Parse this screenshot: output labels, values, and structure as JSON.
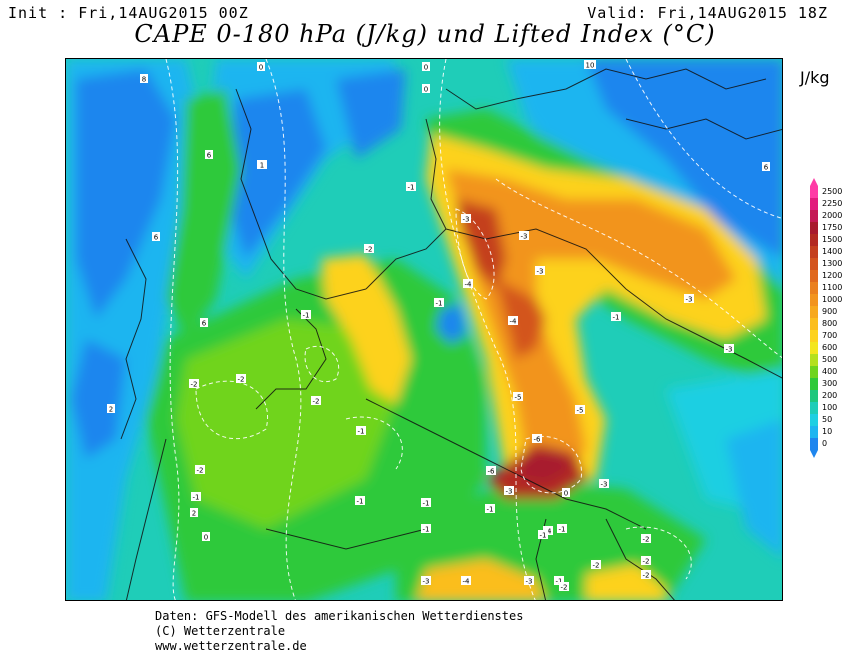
{
  "header": {
    "init": "Init : Fri,14AUG2015 00Z",
    "valid": "Valid: Fri,14AUG2015 18Z",
    "title": "CAPE 0-180 hPa (J/kg) und Lifted Index (°C)",
    "unit": "J/kg"
  },
  "legend": {
    "levels": [
      {
        "label": "2500",
        "color": "#ff3ba6"
      },
      {
        "label": "2250",
        "color": "#e21c7d"
      },
      {
        "label": "2000",
        "color": "#c41a55"
      },
      {
        "label": "1750",
        "color": "#a81a2e"
      },
      {
        "label": "1500",
        "color": "#b32a22"
      },
      {
        "label": "1400",
        "color": "#c4401f"
      },
      {
        "label": "1300",
        "color": "#d3541f"
      },
      {
        "label": "1200",
        "color": "#e0691e"
      },
      {
        "label": "1100",
        "color": "#ea801f"
      },
      {
        "label": "1000",
        "color": "#f2941f"
      },
      {
        "label": "900",
        "color": "#f7a91f"
      },
      {
        "label": "800",
        "color": "#fbbe1f"
      },
      {
        "label": "700",
        "color": "#fdd21f"
      },
      {
        "label": "600",
        "color": "#f3e61f"
      },
      {
        "label": "500",
        "color": "#b4e01f"
      },
      {
        "label": "400",
        "color": "#6fd41f"
      },
      {
        "label": "300",
        "color": "#2fc93a"
      },
      {
        "label": "200",
        "color": "#1fc77d"
      },
      {
        "label": "100",
        "color": "#1fcdb8"
      },
      {
        "label": "50",
        "color": "#1fcfe2"
      },
      {
        "label": "10",
        "color": "#1fb5f0"
      },
      {
        "label": "0",
        "color": "#1f86ee"
      }
    ]
  },
  "lifted_index_labels": [
    "8",
    "6",
    "0",
    "6",
    "6",
    "2",
    "0",
    "1",
    "0",
    "-1",
    "-1",
    "-1",
    "-2",
    "-3",
    "-3",
    "-3",
    "-4",
    "-4",
    "-5",
    "-5",
    "-6",
    "-6",
    "-4",
    "-3",
    "-3",
    "-1",
    "-1",
    "-2",
    "-2",
    "-2",
    "-2",
    "-1",
    "-1",
    "2",
    "0",
    "-1",
    "-1",
    "-1",
    "-3",
    "-3",
    "-4",
    "-1",
    "-1",
    "-2",
    "-2",
    "-1",
    "-3",
    "-2",
    "-3",
    "-2",
    "-2",
    "0",
    "10",
    "6"
  ],
  "footer": {
    "line1": "Daten: GFS-Modell des amerikanischen Wetterdienstes",
    "line2": "(C) Wetterzentrale",
    "line3": "www.wetterzentrale.de"
  }
}
